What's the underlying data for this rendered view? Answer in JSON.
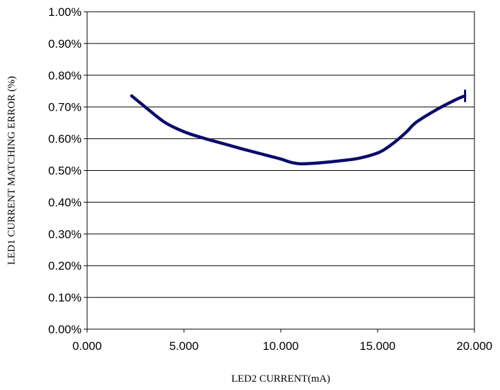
{
  "chart_data": {
    "type": "line",
    "title": "",
    "xlabel": "LED2 CURRENT(mA)",
    "ylabel": "LED1 CURRENT MATCHING ERROR (%)",
    "xlim": [
      0,
      20
    ],
    "ylim": [
      0,
      1.0
    ],
    "x_ticks": [
      "0.000",
      "5.000",
      "10.000",
      "15.000",
      "20.000"
    ],
    "x_tick_values": [
      0,
      5,
      10,
      15,
      20
    ],
    "y_ticks": [
      "0.00%",
      "0.10%",
      "0.20%",
      "0.30%",
      "0.40%",
      "0.50%",
      "0.60%",
      "0.70%",
      "0.80%",
      "0.90%",
      "1.00%"
    ],
    "y_tick_values": [
      0,
      0.1,
      0.2,
      0.3,
      0.4,
      0.5,
      0.6,
      0.7,
      0.8,
      0.9,
      1.0
    ],
    "grid": true,
    "series": [
      {
        "color": "#0b0b6b",
        "x": [
          2.3,
          3.0,
          4.0,
          5.0,
          6.0,
          7.0,
          8.0,
          9.0,
          10.0,
          10.5,
          11.0,
          11.5,
          12.0,
          13.0,
          14.0,
          15.0,
          15.5,
          16.0,
          16.5,
          17.0,
          18.0,
          19.0,
          19.5
        ],
        "y": [
          0.735,
          0.7,
          0.652,
          0.622,
          0.602,
          0.585,
          0.568,
          0.552,
          0.536,
          0.526,
          0.521,
          0.522,
          0.524,
          0.53,
          0.538,
          0.555,
          0.572,
          0.595,
          0.622,
          0.652,
          0.69,
          0.722,
          0.735
        ]
      }
    ]
  }
}
